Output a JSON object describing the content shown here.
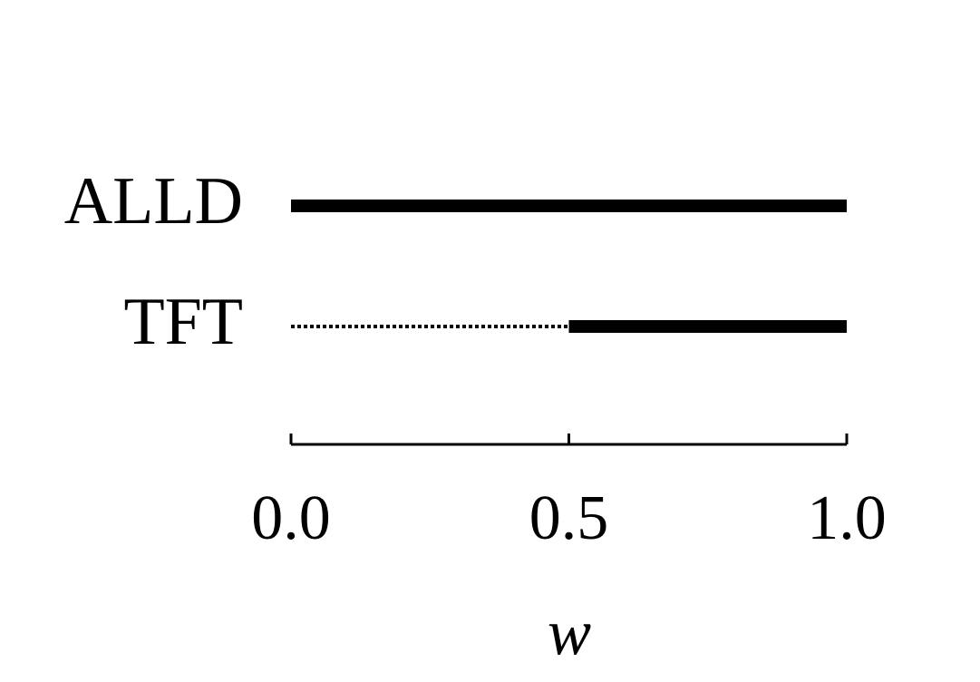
{
  "chart_data": {
    "type": "range",
    "xlabel": "w",
    "xlim": [
      0,
      1
    ],
    "xticks": [
      {
        "value": 0,
        "label": "0.0"
      },
      {
        "value": 0.5,
        "label": "0.5"
      },
      {
        "value": 1,
        "label": "1.0"
      }
    ],
    "color": "#000000",
    "rows": [
      {
        "label": "ALLD",
        "segments": [
          {
            "start": 0,
            "end": 1,
            "style": "solid"
          }
        ]
      },
      {
        "label": "TFT",
        "segments": [
          {
            "start": 0,
            "end": 0.5,
            "style": "dotted"
          },
          {
            "start": 0.5,
            "end": 1,
            "style": "solid"
          }
        ]
      }
    ]
  }
}
